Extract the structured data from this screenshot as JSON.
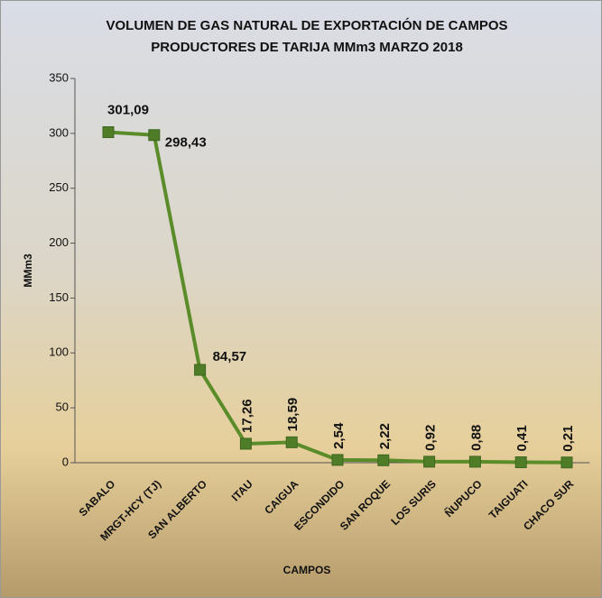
{
  "chart_data": {
    "type": "line",
    "title": [
      "VOLUMEN DE GAS NATURAL DE EXPORTACIÓN DE CAMPOS",
      "PRODUCTORES DE TARIJA MMm3 MARZO 2018"
    ],
    "x_label": "CAMPOS",
    "y_label": "MMm3",
    "categories": [
      "SABALO",
      "MRGT-HCY (TJ)",
      "SAN ALBERTO",
      "ITAU",
      "CAIGUA",
      "ESCONDIDO",
      "SAN ROQUE",
      "LOS SURIS",
      "ÑUPUCO",
      "TAIGUATI",
      "CHACO SUR"
    ],
    "values": [
      301.09,
      298.43,
      84.57,
      17.26,
      18.59,
      2.54,
      2.22,
      0.92,
      0.88,
      0.41,
      0.21
    ],
    "value_labels": [
      "301,09",
      "298,43",
      "84,57",
      "17,26",
      "18,59",
      "2,54",
      "2,22",
      "0,92",
      "0,88",
      "0,41",
      "0,21"
    ],
    "color": "#5b8c2a",
    "ylim": [
      0,
      350
    ],
    "yticks": [
      0,
      50,
      100,
      150,
      200,
      250,
      300,
      350
    ]
  }
}
